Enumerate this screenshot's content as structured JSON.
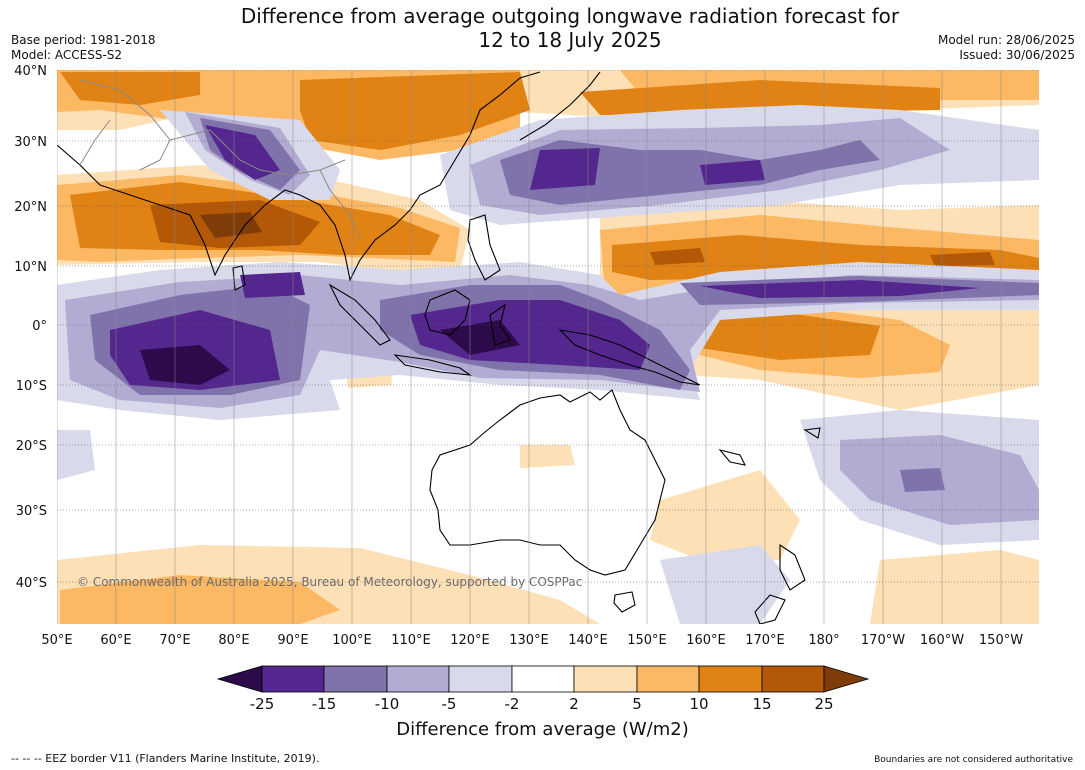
{
  "title_line1": "Difference from average outgoing longwave radiation forecast for",
  "title_line2": "12 to 18 July 2025",
  "meta_left": [
    "Base period: 1981-2018",
    "Model: ACCESS-S2"
  ],
  "meta_right": [
    "Model run: 28/06/2025",
    "Issued: 30/06/2025"
  ],
  "lat_labels": [
    "40°N",
    "30°N",
    "20°N",
    "10°N",
    "0°",
    "10°S",
    "20°S",
    "30°S",
    "40°S"
  ],
  "lon_labels": [
    "50°E",
    "60°E",
    "70°E",
    "80°E",
    "90°E",
    "100°E",
    "110°E",
    "120°E",
    "130°E",
    "140°E",
    "150°E",
    "160°E",
    "170°E",
    "180°",
    "170°W",
    "160°W",
    "150°W"
  ],
  "copyright": "© Commonwealth of Australia 2025, Bureau of Meteorology, supported by COSPPac",
  "legend": {
    "title": "Difference from average (W/m2)",
    "ticks": [
      "-25",
      "-15",
      "-10",
      "-5",
      "-2",
      "2",
      "5",
      "10",
      "15",
      "25"
    ],
    "colors": [
      "#2d0a4a",
      "#54278f",
      "#8073ac",
      "#b2abd2",
      "#d8daeb",
      "#ffffff",
      "#fee0b6",
      "#fdb863",
      "#e08214",
      "#b35806",
      "#7f3b08"
    ]
  },
  "footer_left": "-- -- -- EEZ border V11 (Flanders Marine Institute, 2019).",
  "footer_right": "Boundaries are not considered authoritative"
}
